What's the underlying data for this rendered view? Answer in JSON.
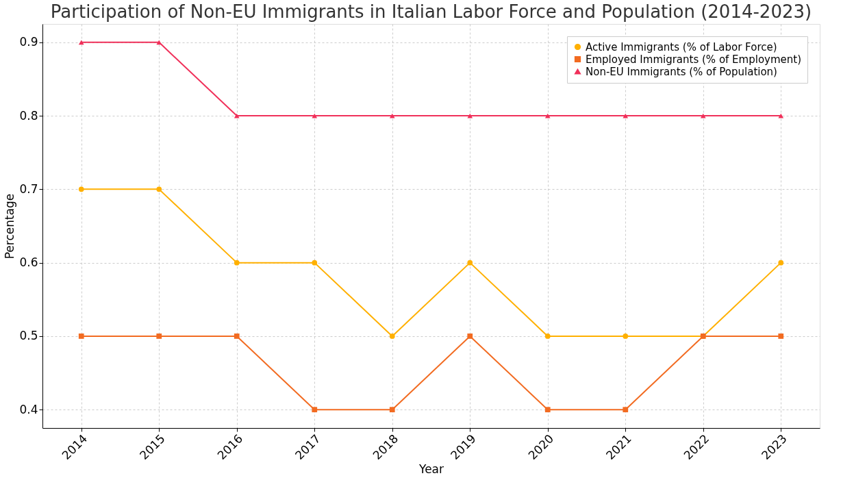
{
  "chart_data": {
    "type": "line",
    "title": "Participation of Non-EU Immigrants in Italian Labor Force and Population (2014-2023)",
    "xlabel": "Year",
    "ylabel": "Percentage",
    "categories": [
      "2014",
      "2015",
      "2016",
      "2017",
      "2018",
      "2019",
      "2020",
      "2021",
      "2022",
      "2023"
    ],
    "series": [
      {
        "name": "Active Immigrants (% of Labor Force)",
        "color": "#ffb000",
        "marker": "circle",
        "values": [
          0.7,
          0.7,
          0.6,
          0.6,
          0.5,
          0.6,
          0.5,
          0.5,
          0.5,
          0.6
        ]
      },
      {
        "name": "Employed Immigrants (% of Employment)",
        "color": "#f26b21",
        "marker": "square",
        "values": [
          0.5,
          0.5,
          0.5,
          0.4,
          0.4,
          0.5,
          0.4,
          0.4,
          0.5,
          0.5
        ]
      },
      {
        "name": "Non-EU Immigrants (% of Population)",
        "color": "#f0305a",
        "marker": "triangle",
        "values": [
          0.9,
          0.9,
          0.8,
          0.8,
          0.8,
          0.8,
          0.8,
          0.8,
          0.8,
          0.8
        ]
      }
    ],
    "ylim": [
      0.375,
      0.925
    ],
    "yticks": [
      0.4,
      0.5,
      0.6,
      0.7,
      0.8,
      0.9
    ],
    "grid": true,
    "legend": "top right",
    "line_style": "solid"
  }
}
